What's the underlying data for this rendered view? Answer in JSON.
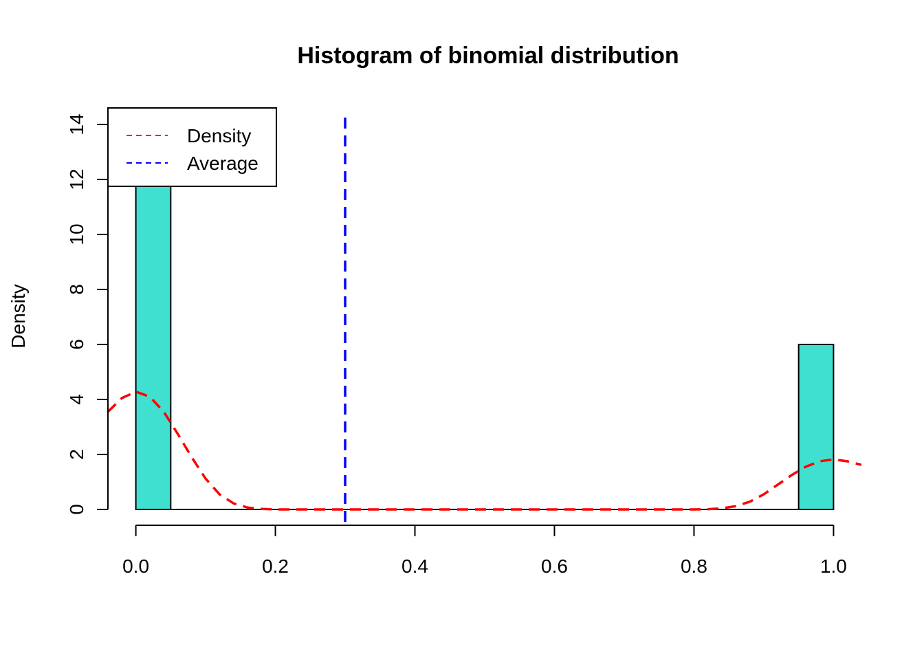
{
  "chart_data": {
    "type": "histogram",
    "title": "Histogram of binomial distribution",
    "xlabel": "",
    "ylabel": "Density",
    "xlim": [
      -0.04,
      1.04
    ],
    "ylim": [
      0,
      14
    ],
    "x_ticks": [
      0.0,
      0.2,
      0.4,
      0.6,
      0.8,
      1.0
    ],
    "x_tick_labels": [
      "0.0",
      "0.2",
      "0.4",
      "0.6",
      "0.8",
      "1.0"
    ],
    "y_ticks": [
      0,
      2,
      4,
      6,
      8,
      10,
      12,
      14
    ],
    "y_tick_labels": [
      "0",
      "2",
      "4",
      "6",
      "8",
      "10",
      "12",
      "14"
    ],
    "bars": [
      {
        "x0": 0.0,
        "x1": 0.05,
        "density": 14
      },
      {
        "x0": 0.95,
        "x1": 1.0,
        "density": 6
      }
    ],
    "bar_color": "#40E0D0",
    "density_curve": {
      "color": "#FF0000",
      "style": "dashed",
      "points": [
        [
          -0.04,
          3.55
        ],
        [
          -0.02,
          4.05
        ],
        [
          0.0,
          4.28
        ],
        [
          0.02,
          4.1
        ],
        [
          0.04,
          3.55
        ],
        [
          0.06,
          2.75
        ],
        [
          0.08,
          1.9
        ],
        [
          0.1,
          1.12
        ],
        [
          0.12,
          0.55
        ],
        [
          0.14,
          0.22
        ],
        [
          0.16,
          0.07
        ],
        [
          0.18,
          0.02
        ],
        [
          0.2,
          0.0
        ],
        [
          0.3,
          0.0
        ],
        [
          0.4,
          0.0
        ],
        [
          0.5,
          0.0
        ],
        [
          0.6,
          0.0
        ],
        [
          0.7,
          0.0
        ],
        [
          0.8,
          0.0
        ],
        [
          0.82,
          0.01
        ],
        [
          0.84,
          0.04
        ],
        [
          0.86,
          0.12
        ],
        [
          0.88,
          0.28
        ],
        [
          0.9,
          0.55
        ],
        [
          0.92,
          0.9
        ],
        [
          0.94,
          1.25
        ],
        [
          0.96,
          1.55
        ],
        [
          0.98,
          1.75
        ],
        [
          1.0,
          1.82
        ],
        [
          1.02,
          1.75
        ],
        [
          1.04,
          1.62
        ]
      ]
    },
    "average": {
      "value": 0.3,
      "color": "#0000FF",
      "style": "dashed"
    },
    "legend": {
      "position": "top-left",
      "entries": [
        {
          "label": "Density",
          "color": "#FF0000",
          "style": "dashed"
        },
        {
          "label": "Average",
          "color": "#0000FF",
          "style": "dashed"
        }
      ]
    }
  }
}
